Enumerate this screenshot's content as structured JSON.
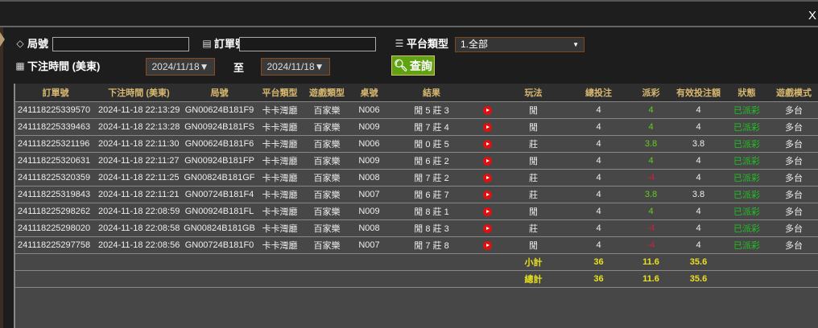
{
  "window": {
    "close_label": "X"
  },
  "filters": {
    "round_label": "局號",
    "round_value": "",
    "order_label": "訂單號",
    "order_value": "",
    "platform_label": "平台類型",
    "platform_value": "1.全部",
    "time_label": "下注時間 (美東)",
    "date_from": "2024/11/18▼",
    "to_label": "至",
    "date_to": "2024/11/18▼",
    "query_label": "查詢"
  },
  "table": {
    "headers": [
      "訂單號",
      "下注時間 (美東)",
      "局號",
      "平台類型",
      "遊戲類型",
      "桌號",
      "結果",
      "",
      "玩法",
      "總投注",
      "派彩",
      "有效投注額",
      "狀態",
      "遊戲模式"
    ],
    "rows": [
      {
        "order": "241118225339570",
        "time": "2024-11-18 22:13:29",
        "round": "GN00624B181F9",
        "platform": "卡卡灣廳",
        "game": "百家樂",
        "table": "N006",
        "result": "閒 5 莊 3",
        "bet": "閒",
        "total": "4",
        "payout": "4",
        "payout_type": "win",
        "valid": "4",
        "status": "已派彩",
        "mode": "多台"
      },
      {
        "order": "241118225339463",
        "time": "2024-11-18 22:13:28",
        "round": "GN00924B181FS",
        "platform": "卡卡灣廳",
        "game": "百家樂",
        "table": "N009",
        "result": "閒 7 莊 4",
        "bet": "閒",
        "total": "4",
        "payout": "4",
        "payout_type": "win",
        "valid": "4",
        "status": "已派彩",
        "mode": "多台"
      },
      {
        "order": "241118225321196",
        "time": "2024-11-18 22:11:30",
        "round": "GN00624B181F6",
        "platform": "卡卡灣廳",
        "game": "百家樂",
        "table": "N006",
        "result": "閒 0 莊 5",
        "bet": "莊",
        "total": "4",
        "payout": "3.8",
        "payout_type": "win",
        "valid": "3.8",
        "status": "已派彩",
        "mode": "多台"
      },
      {
        "order": "241118225320631",
        "time": "2024-11-18 22:11:27",
        "round": "GN00924B181FP",
        "platform": "卡卡灣廳",
        "game": "百家樂",
        "table": "N009",
        "result": "閒 6 莊 2",
        "bet": "閒",
        "total": "4",
        "payout": "4",
        "payout_type": "win",
        "valid": "4",
        "status": "已派彩",
        "mode": "多台"
      },
      {
        "order": "241118225320359",
        "time": "2024-11-18 22:11:25",
        "round": "GN00824B181GF",
        "platform": "卡卡灣廳",
        "game": "百家樂",
        "table": "N008",
        "result": "閒 7 莊 2",
        "bet": "莊",
        "total": "4",
        "payout": "-4",
        "payout_type": "lose",
        "valid": "4",
        "status": "已派彩",
        "mode": "多台"
      },
      {
        "order": "241118225319843",
        "time": "2024-11-18 22:11:21",
        "round": "GN00724B181F4",
        "platform": "卡卡灣廳",
        "game": "百家樂",
        "table": "N007",
        "result": "閒 6 莊 7",
        "bet": "莊",
        "total": "4",
        "payout": "3.8",
        "payout_type": "win",
        "valid": "3.8",
        "status": "已派彩",
        "mode": "多台"
      },
      {
        "order": "241118225298262",
        "time": "2024-11-18 22:08:59",
        "round": "GN00924B181FL",
        "platform": "卡卡灣廳",
        "game": "百家樂",
        "table": "N009",
        "result": "閒 8 莊 1",
        "bet": "閒",
        "total": "4",
        "payout": "4",
        "payout_type": "win",
        "valid": "4",
        "status": "已派彩",
        "mode": "多台"
      },
      {
        "order": "241118225298020",
        "time": "2024-11-18 22:08:58",
        "round": "GN00824B181GB",
        "platform": "卡卡灣廳",
        "game": "百家樂",
        "table": "N008",
        "result": "閒 8 莊 3",
        "bet": "莊",
        "total": "4",
        "payout": "-4",
        "payout_type": "lose",
        "valid": "4",
        "status": "已派彩",
        "mode": "多台"
      },
      {
        "order": "241118225297758",
        "time": "2024-11-18 22:08:56",
        "round": "GN00724B181F0",
        "platform": "卡卡灣廳",
        "game": "百家樂",
        "table": "N007",
        "result": "閒 7 莊 8",
        "bet": "閒",
        "total": "4",
        "payout": "-4",
        "payout_type": "lose",
        "valid": "4",
        "status": "已派彩",
        "mode": "多台"
      }
    ],
    "subtotal": {
      "label": "小計",
      "total": "36",
      "payout": "11.6",
      "valid": "35.6"
    },
    "grandtotal": {
      "label": "總計",
      "total": "36",
      "payout": "11.6",
      "valid": "35.6"
    }
  },
  "colors": {
    "header_text": "#d8b870",
    "win": "#5fd01a",
    "lose": "#d0203a",
    "status": "#20c020",
    "sum": "#e8e020",
    "query_button": "#5fa212"
  }
}
